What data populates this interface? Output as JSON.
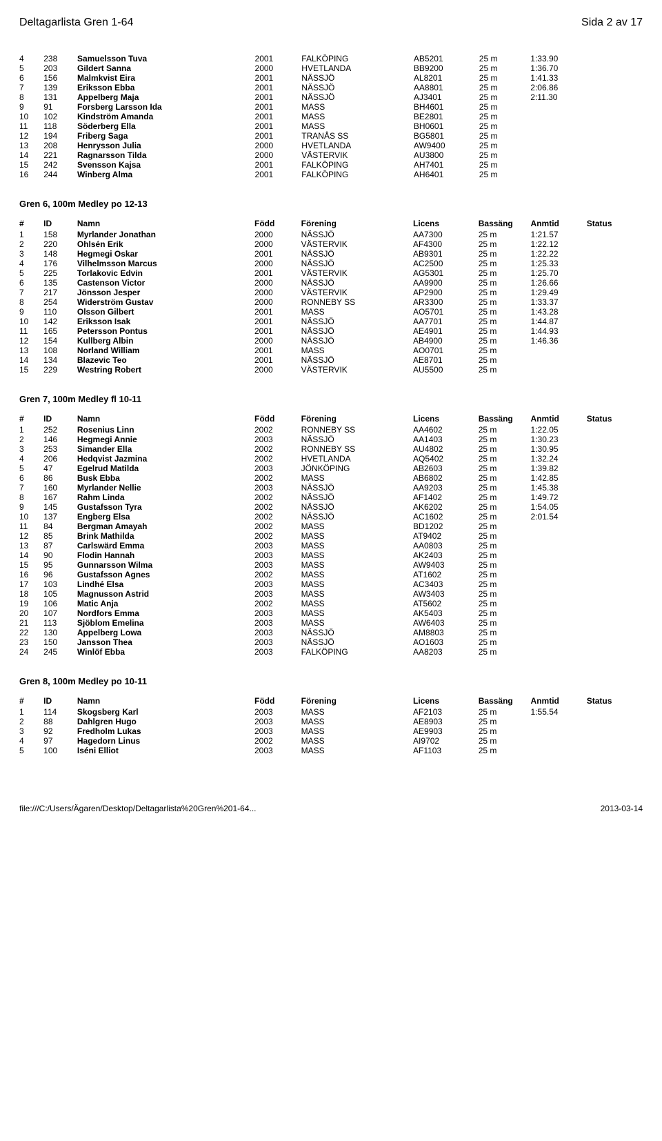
{
  "header": {
    "title_left": "Deltagarlista Gren 1-64",
    "title_right": "Sida 2 av 17"
  },
  "columns": {
    "rank": "#",
    "id": "ID",
    "name": "Namn",
    "year": "Född",
    "club": "Förening",
    "lic": "Licens",
    "pool": "Bassäng",
    "time": "Anmtid",
    "status": "Status"
  },
  "top_table": {
    "rows": [
      {
        "rank": "4",
        "id": "238",
        "name": "Samuelsson Tuva",
        "year": "2001",
        "club": "FALKÖPING",
        "lic": "AB5201",
        "pool": "25 m",
        "time": "1:33.90"
      },
      {
        "rank": "5",
        "id": "203",
        "name": "Gildert Sanna",
        "year": "2000",
        "club": "HVETLANDA",
        "lic": "BB9200",
        "pool": "25 m",
        "time": "1:36.70"
      },
      {
        "rank": "6",
        "id": "156",
        "name": "Malmkvist Eira",
        "year": "2001",
        "club": "NÄSSJÖ",
        "lic": "AL8201",
        "pool": "25 m",
        "time": "1:41.33"
      },
      {
        "rank": "7",
        "id": "139",
        "name": "Eriksson Ebba",
        "year": "2001",
        "club": "NÄSSJÖ",
        "lic": "AA8801",
        "pool": "25 m",
        "time": "2:06.86"
      },
      {
        "rank": "8",
        "id": "131",
        "name": "Appelberg Maja",
        "year": "2001",
        "club": "NÄSSJÖ",
        "lic": "AJ3401",
        "pool": "25 m",
        "time": "2:11.30"
      },
      {
        "rank": "9",
        "id": "91",
        "name": "Forsberg Larsson Ida",
        "year": "2001",
        "club": "MASS",
        "lic": "BH4601",
        "pool": "25 m",
        "time": ""
      },
      {
        "rank": "10",
        "id": "102",
        "name": "Kindström Amanda",
        "year": "2001",
        "club": "MASS",
        "lic": "BE2801",
        "pool": "25 m",
        "time": ""
      },
      {
        "rank": "11",
        "id": "118",
        "name": "Söderberg Ella",
        "year": "2001",
        "club": "MASS",
        "lic": "BH0601",
        "pool": "25 m",
        "time": ""
      },
      {
        "rank": "12",
        "id": "194",
        "name": "Friberg Saga",
        "year": "2001",
        "club": "TRANÅS SS",
        "lic": "BG5801",
        "pool": "25 m",
        "time": ""
      },
      {
        "rank": "13",
        "id": "208",
        "name": "Henrysson Julia",
        "year": "2000",
        "club": "HVETLANDA",
        "lic": "AW9400",
        "pool": "25 m",
        "time": ""
      },
      {
        "rank": "14",
        "id": "221",
        "name": "Ragnarsson Tilda",
        "year": "2000",
        "club": "VÄSTERVIK",
        "lic": "AU3800",
        "pool": "25 m",
        "time": ""
      },
      {
        "rank": "15",
        "id": "242",
        "name": "Svensson Kajsa",
        "year": "2001",
        "club": "FALKÖPING",
        "lic": "AH7401",
        "pool": "25 m",
        "time": ""
      },
      {
        "rank": "16",
        "id": "244",
        "name": "Winberg Alma",
        "year": "2001",
        "club": "FALKÖPING",
        "lic": "AH6401",
        "pool": "25 m",
        "time": ""
      }
    ]
  },
  "sections": [
    {
      "title": "Gren 6, 100m Medley po 12-13",
      "show_header": true,
      "rows": [
        {
          "rank": "1",
          "id": "158",
          "name": "Myrlander Jonathan",
          "year": "2000",
          "club": "NÄSSJÖ",
          "lic": "AA7300",
          "pool": "25 m",
          "time": "1:21.57"
        },
        {
          "rank": "2",
          "id": "220",
          "name": "Ohlsén Erik",
          "year": "2000",
          "club": "VÄSTERVIK",
          "lic": "AF4300",
          "pool": "25 m",
          "time": "1:22.12"
        },
        {
          "rank": "3",
          "id": "148",
          "name": "Hegmegi Oskar",
          "year": "2001",
          "club": "NÄSSJÖ",
          "lic": "AB9301",
          "pool": "25 m",
          "time": "1:22.22"
        },
        {
          "rank": "4",
          "id": "176",
          "name": "Vilhelmsson Marcus",
          "year": "2000",
          "club": "NÄSSJÖ",
          "lic": "AC2500",
          "pool": "25 m",
          "time": "1:25.33"
        },
        {
          "rank": "5",
          "id": "225",
          "name": "Torlakovic Edvin",
          "year": "2001",
          "club": "VÄSTERVIK",
          "lic": "AG5301",
          "pool": "25 m",
          "time": "1:25.70"
        },
        {
          "rank": "6",
          "id": "135",
          "name": "Castenson Victor",
          "year": "2000",
          "club": "NÄSSJÖ",
          "lic": "AA9900",
          "pool": "25 m",
          "time": "1:26.66"
        },
        {
          "rank": "7",
          "id": "217",
          "name": "Jönsson Jesper",
          "year": "2000",
          "club": "VÄSTERVIK",
          "lic": "AP2900",
          "pool": "25 m",
          "time": "1:29.49"
        },
        {
          "rank": "8",
          "id": "254",
          "name": "Widerström Gustav",
          "year": "2000",
          "club": "RONNEBY SS",
          "lic": "AR3300",
          "pool": "25 m",
          "time": "1:33.37"
        },
        {
          "rank": "9",
          "id": "110",
          "name": "Olsson Gilbert",
          "year": "2001",
          "club": "MASS",
          "lic": "AO5701",
          "pool": "25 m",
          "time": "1:43.28"
        },
        {
          "rank": "10",
          "id": "142",
          "name": "Eriksson Isak",
          "year": "2001",
          "club": "NÄSSJÖ",
          "lic": "AA7701",
          "pool": "25 m",
          "time": "1:44.87"
        },
        {
          "rank": "11",
          "id": "165",
          "name": "Petersson Pontus",
          "year": "2001",
          "club": "NÄSSJÖ",
          "lic": "AE4901",
          "pool": "25 m",
          "time": "1:44.93"
        },
        {
          "rank": "12",
          "id": "154",
          "name": "Kullberg Albin",
          "year": "2000",
          "club": "NÄSSJÖ",
          "lic": "AB4900",
          "pool": "25 m",
          "time": "1:46.36"
        },
        {
          "rank": "13",
          "id": "108",
          "name": "Norland William",
          "year": "2001",
          "club": "MASS",
          "lic": "AO0701",
          "pool": "25 m",
          "time": ""
        },
        {
          "rank": "14",
          "id": "134",
          "name": "Blazevic Teo",
          "year": "2001",
          "club": "NÄSSJÖ",
          "lic": "AE8701",
          "pool": "25 m",
          "time": ""
        },
        {
          "rank": "15",
          "id": "229",
          "name": "Westring Robert",
          "year": "2000",
          "club": "VÄSTERVIK",
          "lic": "AU5500",
          "pool": "25 m",
          "time": ""
        }
      ]
    },
    {
      "title": "Gren 7, 100m Medley fl 10-11",
      "show_header": true,
      "rows": [
        {
          "rank": "1",
          "id": "252",
          "name": "Rosenius Linn",
          "year": "2002",
          "club": "RONNEBY SS",
          "lic": "AA4602",
          "pool": "25 m",
          "time": "1:22.05"
        },
        {
          "rank": "2",
          "id": "146",
          "name": "Hegmegi Annie",
          "year": "2003",
          "club": "NÄSSJÖ",
          "lic": "AA1403",
          "pool": "25 m",
          "time": "1:30.23"
        },
        {
          "rank": "3",
          "id": "253",
          "name": "Simander Ella",
          "year": "2002",
          "club": "RONNEBY SS",
          "lic": "AU4802",
          "pool": "25 m",
          "time": "1:30.95"
        },
        {
          "rank": "4",
          "id": "206",
          "name": "Hedqvist Jazmina",
          "year": "2002",
          "club": "HVETLANDA",
          "lic": "AQ5402",
          "pool": "25 m",
          "time": "1:32.24"
        },
        {
          "rank": "5",
          "id": "47",
          "name": "Egelrud Matilda",
          "year": "2003",
          "club": "JÖNKÖPING",
          "lic": "AB2603",
          "pool": "25 m",
          "time": "1:39.82"
        },
        {
          "rank": "6",
          "id": "86",
          "name": "Busk Ebba",
          "year": "2002",
          "club": "MASS",
          "lic": "AB6802",
          "pool": "25 m",
          "time": "1:42.85"
        },
        {
          "rank": "7",
          "id": "160",
          "name": "Myrlander Nellie",
          "year": "2003",
          "club": "NÄSSJÖ",
          "lic": "AA9203",
          "pool": "25 m",
          "time": "1:45.38"
        },
        {
          "rank": "8",
          "id": "167",
          "name": "Rahm Linda",
          "year": "2002",
          "club": "NÄSSJÖ",
          "lic": "AF1402",
          "pool": "25 m",
          "time": "1:49.72"
        },
        {
          "rank": "9",
          "id": "145",
          "name": "Gustafsson Tyra",
          "year": "2002",
          "club": "NÄSSJÖ",
          "lic": "AK6202",
          "pool": "25 m",
          "time": "1:54.05"
        },
        {
          "rank": "10",
          "id": "137",
          "name": "Engberg Elsa",
          "year": "2002",
          "club": "NÄSSJÖ",
          "lic": "AC1602",
          "pool": "25 m",
          "time": "2:01.54"
        },
        {
          "rank": "11",
          "id": "84",
          "name": "Bergman Amayah",
          "year": "2002",
          "club": "MASS",
          "lic": "BD1202",
          "pool": "25 m",
          "time": ""
        },
        {
          "rank": "12",
          "id": "85",
          "name": "Brink Mathilda",
          "year": "2002",
          "club": "MASS",
          "lic": "AT9402",
          "pool": "25 m",
          "time": ""
        },
        {
          "rank": "13",
          "id": "87",
          "name": "Carlswärd Emma",
          "year": "2003",
          "club": "MASS",
          "lic": "AA0803",
          "pool": "25 m",
          "time": ""
        },
        {
          "rank": "14",
          "id": "90",
          "name": "Flodin Hannah",
          "year": "2003",
          "club": "MASS",
          "lic": "AK2403",
          "pool": "25 m",
          "time": ""
        },
        {
          "rank": "15",
          "id": "95",
          "name": "Gunnarsson Wilma",
          "year": "2003",
          "club": "MASS",
          "lic": "AW9403",
          "pool": "25 m",
          "time": ""
        },
        {
          "rank": "16",
          "id": "96",
          "name": "Gustafsson Agnes",
          "year": "2002",
          "club": "MASS",
          "lic": "AT1602",
          "pool": "25 m",
          "time": ""
        },
        {
          "rank": "17",
          "id": "103",
          "name": "Lindhé Elsa",
          "year": "2003",
          "club": "MASS",
          "lic": "AC3403",
          "pool": "25 m",
          "time": ""
        },
        {
          "rank": "18",
          "id": "105",
          "name": "Magnusson Astrid",
          "year": "2003",
          "club": "MASS",
          "lic": "AW3403",
          "pool": "25 m",
          "time": ""
        },
        {
          "rank": "19",
          "id": "106",
          "name": "Matic Anja",
          "year": "2002",
          "club": "MASS",
          "lic": "AT5602",
          "pool": "25 m",
          "time": ""
        },
        {
          "rank": "20",
          "id": "107",
          "name": "Nordfors Emma",
          "year": "2003",
          "club": "MASS",
          "lic": "AK5403",
          "pool": "25 m",
          "time": ""
        },
        {
          "rank": "21",
          "id": "113",
          "name": "Sjöblom Emelina",
          "year": "2003",
          "club": "MASS",
          "lic": "AW6403",
          "pool": "25 m",
          "time": ""
        },
        {
          "rank": "22",
          "id": "130",
          "name": "Appelberg Lowa",
          "year": "2003",
          "club": "NÄSSJÖ",
          "lic": "AM8803",
          "pool": "25 m",
          "time": ""
        },
        {
          "rank": "23",
          "id": "150",
          "name": "Jansson Thea",
          "year": "2003",
          "club": "NÄSSJÖ",
          "lic": "AO1603",
          "pool": "25 m",
          "time": ""
        },
        {
          "rank": "24",
          "id": "245",
          "name": "Winlöf Ebba",
          "year": "2003",
          "club": "FALKÖPING",
          "lic": "AA8203",
          "pool": "25 m",
          "time": ""
        }
      ]
    },
    {
      "title": "Gren 8, 100m Medley po 10-11",
      "show_header": true,
      "rows": [
        {
          "rank": "1",
          "id": "114",
          "name": "Skogsberg Karl",
          "year": "2003",
          "club": "MASS",
          "lic": "AF2103",
          "pool": "25 m",
          "time": "1:55.54"
        },
        {
          "rank": "2",
          "id": "88",
          "name": "Dahlgren Hugo",
          "year": "2003",
          "club": "MASS",
          "lic": "AE8903",
          "pool": "25 m",
          "time": ""
        },
        {
          "rank": "3",
          "id": "92",
          "name": "Fredholm Lukas",
          "year": "2003",
          "club": "MASS",
          "lic": "AE9903",
          "pool": "25 m",
          "time": ""
        },
        {
          "rank": "4",
          "id": "97",
          "name": "Hagedorn Linus",
          "year": "2002",
          "club": "MASS",
          "lic": "AI9702",
          "pool": "25 m",
          "time": ""
        },
        {
          "rank": "5",
          "id": "100",
          "name": "Iséni Elliot",
          "year": "2003",
          "club": "MASS",
          "lic": "AF1103",
          "pool": "25 m",
          "time": ""
        }
      ]
    }
  ],
  "footer": {
    "left": "file:///C:/Users/Ägaren/Desktop/Deltagarlista%20Gren%201-64...",
    "right": "2013-03-14"
  }
}
